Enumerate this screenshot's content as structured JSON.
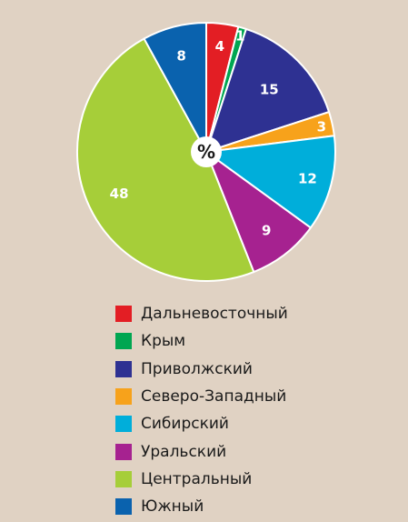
{
  "chart_data": {
    "type": "pie",
    "center_label": "%",
    "legend_position": "bottom",
    "slices": [
      {
        "name": "Дальневосточный",
        "value": 4,
        "label": "4",
        "color": "#e31e24"
      },
      {
        "name": "Крым",
        "value": 1,
        "label": "1",
        "color": "#00a651"
      },
      {
        "name": "Приволжский",
        "value": 15,
        "label": "15",
        "color": "#2e3192"
      },
      {
        "name": "Северо-Западный",
        "value": 3,
        "label": "3",
        "color": "#f7a21b"
      },
      {
        "name": "Сибирский",
        "value": 12,
        "label": "12",
        "color": "#00aeda"
      },
      {
        "name": "Уральский",
        "value": 9,
        "label": "9",
        "color": "#a62290"
      },
      {
        "name": "Центральный",
        "value": 48,
        "label": "48",
        "color": "#a6ce39"
      },
      {
        "name": "Южный",
        "value": 8,
        "label": "8",
        "color": "#0a62ae"
      }
    ]
  }
}
